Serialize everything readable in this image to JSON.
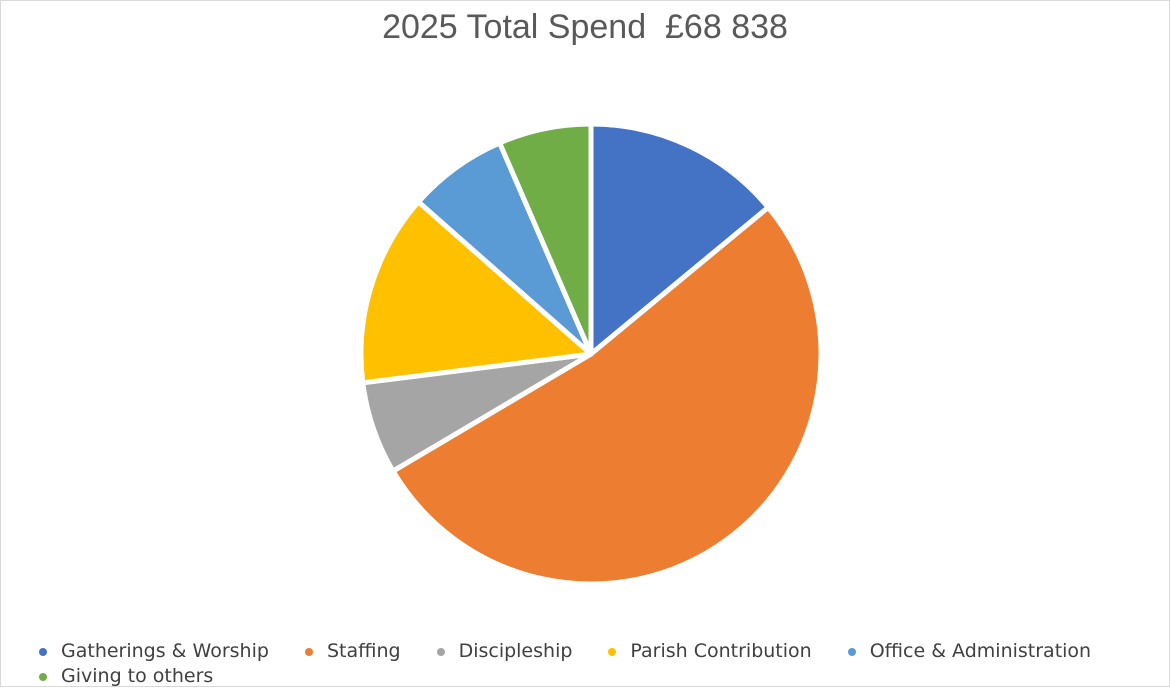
{
  "chart_data": {
    "type": "pie",
    "title": "2025 Total Spend  £68 838",
    "legend_position": "bottom",
    "slices": [
      {
        "label": "Gatherings & Worship",
        "value": 14.0,
        "color": "#4472C4"
      },
      {
        "label": "Staffing",
        "value": 52.5,
        "color": "#ED7D31"
      },
      {
        "label": "Discipleship",
        "value": 6.5,
        "color": "#A5A5A5"
      },
      {
        "label": "Parish Contribution",
        "value": 13.5,
        "color": "#FFC000"
      },
      {
        "label": "Office & Administration",
        "value": 7.0,
        "color": "#5B9BD5"
      },
      {
        "label": "Giving to others",
        "value": 6.5,
        "color": "#70AD47"
      }
    ]
  }
}
